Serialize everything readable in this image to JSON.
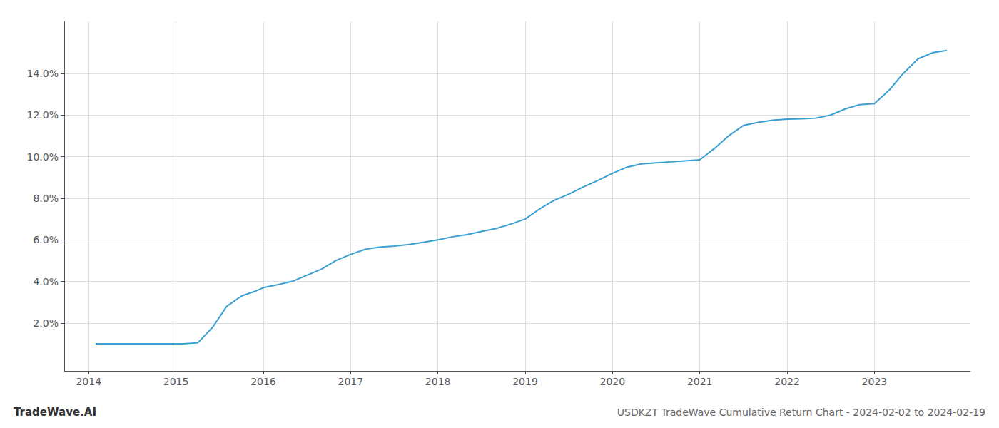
{
  "chart_data": {
    "type": "line",
    "title": "USDKZT TradeWave Cumulative Return Chart - 2024-02-02 to 2024-02-19",
    "annotations": [
      "TradeWave.AI"
    ],
    "color": "#3a9fd1",
    "grid": true,
    "x": [
      2014.08,
      2014.25,
      2014.5,
      2014.75,
      2015.0,
      2015.08,
      2015.25,
      2015.42,
      2015.58,
      2015.75,
      2015.92,
      2016.0,
      2016.17,
      2016.33,
      2016.5,
      2016.67,
      2016.83,
      2017.0,
      2017.17,
      2017.33,
      2017.5,
      2017.67,
      2017.83,
      2018.0,
      2018.17,
      2018.33,
      2018.5,
      2018.67,
      2018.83,
      2019.0,
      2019.17,
      2019.33,
      2019.5,
      2019.67,
      2019.83,
      2020.0,
      2020.17,
      2020.33,
      2020.5,
      2020.67,
      2020.83,
      2021.0,
      2021.17,
      2021.33,
      2021.5,
      2021.67,
      2021.83,
      2022.0,
      2022.17,
      2022.33,
      2022.5,
      2022.67,
      2022.83,
      2023.0,
      2023.17,
      2023.33,
      2023.5,
      2023.67,
      2023.83
    ],
    "values": [
      1.0,
      1.0,
      1.0,
      1.0,
      1.0,
      1.0,
      1.05,
      1.8,
      2.8,
      3.3,
      3.55,
      3.7,
      3.85,
      4.0,
      4.3,
      4.6,
      5.0,
      5.3,
      5.55,
      5.65,
      5.7,
      5.78,
      5.88,
      6.0,
      6.15,
      6.25,
      6.4,
      6.55,
      6.75,
      7.0,
      7.5,
      7.9,
      8.2,
      8.55,
      8.85,
      9.2,
      9.5,
      9.65,
      9.7,
      9.75,
      9.8,
      9.85,
      10.4,
      11.0,
      11.5,
      11.65,
      11.75,
      11.8,
      11.82,
      11.85,
      12.0,
      12.3,
      12.5,
      12.55,
      13.2,
      14.0,
      14.7,
      15.0,
      15.1
    ],
    "xlim": [
      2013.72,
      2024.1
    ],
    "xticks": [
      2014,
      2015,
      2016,
      2017,
      2018,
      2019,
      2020,
      2021,
      2022,
      2023
    ],
    "ylim": [
      -0.3,
      16.5
    ],
    "yticks": [
      {
        "value": 2.0,
        "label": "2.0%"
      },
      {
        "value": 4.0,
        "label": "4.0%"
      },
      {
        "value": 6.0,
        "label": "6.0%"
      },
      {
        "value": 8.0,
        "label": "8.0%"
      },
      {
        "value": 10.0,
        "label": "10.0%"
      },
      {
        "value": 12.0,
        "label": "12.0%"
      },
      {
        "value": 14.0,
        "label": "14.0%"
      }
    ]
  }
}
